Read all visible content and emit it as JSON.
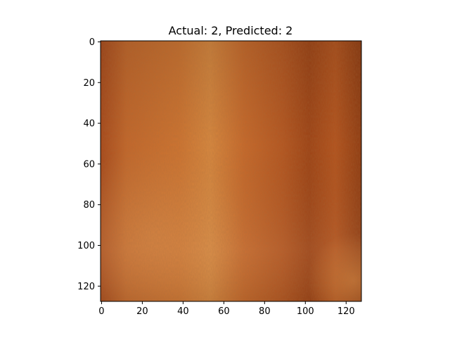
{
  "chart_data": {
    "type": "image",
    "title": "Actual: 2, Predicted: 2",
    "image_size": [
      128,
      128
    ],
    "xlim": [
      0,
      128
    ],
    "ylim": [
      128,
      0
    ],
    "x_ticks": [
      0,
      20,
      40,
      60,
      80,
      100,
      120
    ],
    "y_ticks": [
      0,
      20,
      40,
      60,
      80,
      100,
      120
    ],
    "grid": false,
    "image_content": "orange-brown fur texture",
    "colors": {
      "base": "#b8561e",
      "light": "#d9893f",
      "dark": "#8f3a10"
    }
  }
}
